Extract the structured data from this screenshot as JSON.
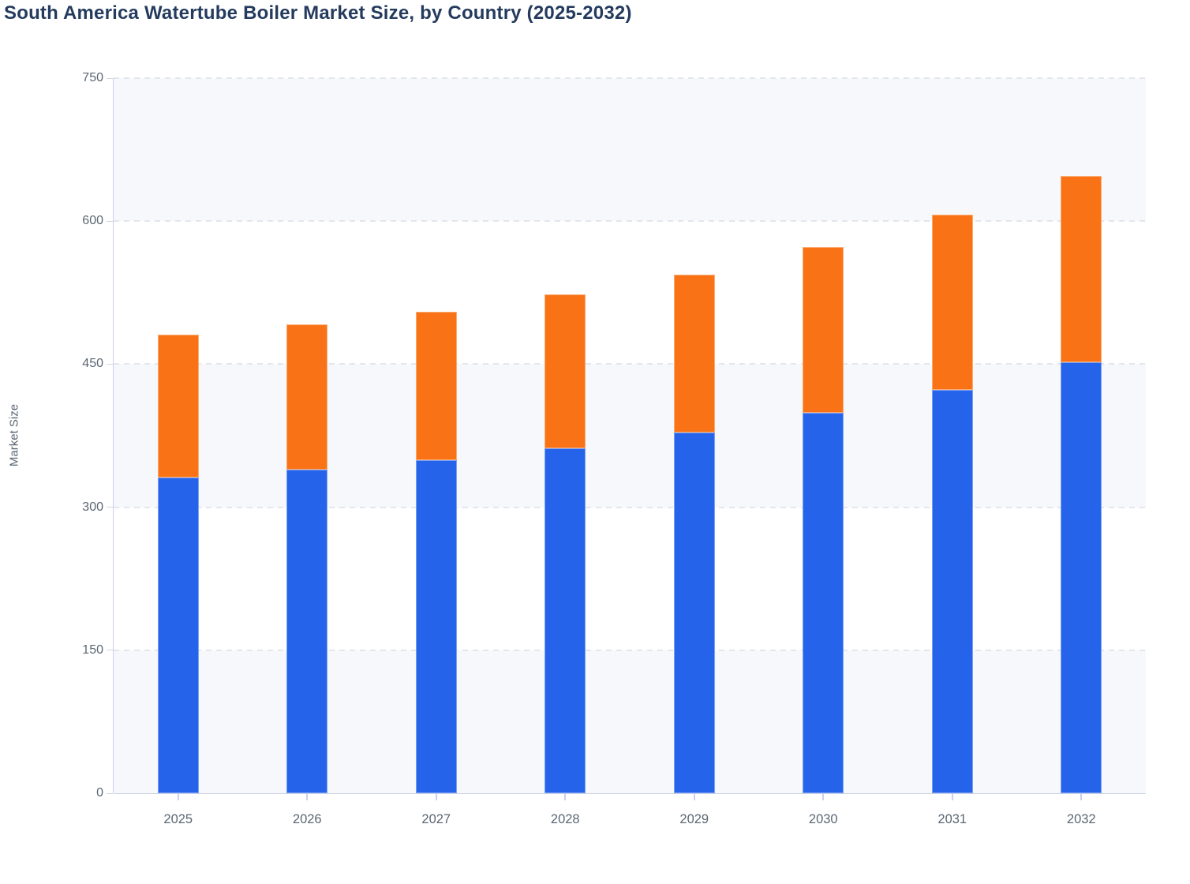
{
  "chart_data": {
    "type": "bar",
    "stacked": true,
    "title": "South America Watertube Boiler Market Size, by Country (2025-2032)",
    "ylabel": "Market Size",
    "xlabel": "",
    "categories": [
      "2025",
      "2026",
      "2027",
      "2028",
      "2029",
      "2030",
      "2031",
      "2032"
    ],
    "series": [
      {
        "name": "Blue (bottom segment)",
        "color": "#2563eb",
        "values": [
          331,
          339,
          349,
          362,
          378,
          399,
          423,
          452
        ]
      },
      {
        "name": "Orange (top segment)",
        "color": "#f97316",
        "values": [
          150,
          153,
          156,
          161,
          166,
          174,
          184,
          195
        ]
      }
    ],
    "totals": [
      481,
      492,
      505,
      523,
      544,
      573,
      607,
      647
    ],
    "ylim": [
      0,
      750
    ],
    "yticks": [
      0,
      150,
      300,
      450,
      600,
      750
    ],
    "grid": "horizontal-dashed",
    "legend": "none"
  },
  "colors": {
    "title_text": "#243b5e",
    "axis_text": "#5a6673",
    "plot_band": "#f7f8fb",
    "gridline": "#e3e6ec",
    "axis_line": "#c9cff2",
    "baseline": "#ccd2e6",
    "y_tick": "#d3d6df",
    "x_tick": "#c9cff2"
  }
}
